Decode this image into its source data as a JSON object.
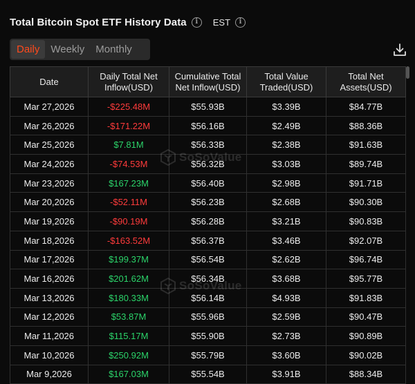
{
  "header": {
    "title": "Total Bitcoin Spot ETF History Data",
    "timezone": "EST"
  },
  "tabs": [
    {
      "label": "Daily",
      "active": true
    },
    {
      "label": "Weekly",
      "active": false
    },
    {
      "label": "Monthly",
      "active": false
    }
  ],
  "watermark": "SoSoValue",
  "table": {
    "columns": [
      "Date",
      "Daily Total Net Inflow(USD)",
      "Cumulative Total Net Inflow(USD)",
      "Total Value Traded(USD)",
      "Total Net Assets(USD)"
    ],
    "rows": [
      {
        "date": "Mar 27,2026",
        "inflow": "-$225.48M",
        "sign": "neg",
        "cumulative": "$55.93B",
        "traded": "$3.39B",
        "assets": "$84.77B"
      },
      {
        "date": "Mar 26,2026",
        "inflow": "-$171.22M",
        "sign": "neg",
        "cumulative": "$56.16B",
        "traded": "$2.49B",
        "assets": "$88.36B"
      },
      {
        "date": "Mar 25,2026",
        "inflow": "$7.81M",
        "sign": "pos",
        "cumulative": "$56.33B",
        "traded": "$2.38B",
        "assets": "$91.63B"
      },
      {
        "date": "Mar 24,2026",
        "inflow": "-$74.53M",
        "sign": "neg",
        "cumulative": "$56.32B",
        "traded": "$3.03B",
        "assets": "$89.74B"
      },
      {
        "date": "Mar 23,2026",
        "inflow": "$167.23M",
        "sign": "pos",
        "cumulative": "$56.40B",
        "traded": "$2.98B",
        "assets": "$91.71B"
      },
      {
        "date": "Mar 20,2026",
        "inflow": "-$52.11M",
        "sign": "neg",
        "cumulative": "$56.23B",
        "traded": "$2.68B",
        "assets": "$90.30B"
      },
      {
        "date": "Mar 19,2026",
        "inflow": "-$90.19M",
        "sign": "neg",
        "cumulative": "$56.28B",
        "traded": "$3.21B",
        "assets": "$90.83B"
      },
      {
        "date": "Mar 18,2026",
        "inflow": "-$163.52M",
        "sign": "neg",
        "cumulative": "$56.37B",
        "traded": "$3.46B",
        "assets": "$92.07B"
      },
      {
        "date": "Mar 17,2026",
        "inflow": "$199.37M",
        "sign": "pos",
        "cumulative": "$56.54B",
        "traded": "$2.62B",
        "assets": "$96.74B"
      },
      {
        "date": "Mar 16,2026",
        "inflow": "$201.62M",
        "sign": "pos",
        "cumulative": "$56.34B",
        "traded": "$3.68B",
        "assets": "$95.77B"
      },
      {
        "date": "Mar 13,2026",
        "inflow": "$180.33M",
        "sign": "pos",
        "cumulative": "$56.14B",
        "traded": "$4.93B",
        "assets": "$91.83B"
      },
      {
        "date": "Mar 12,2026",
        "inflow": "$53.87M",
        "sign": "pos",
        "cumulative": "$55.96B",
        "traded": "$2.59B",
        "assets": "$90.47B"
      },
      {
        "date": "Mar 11,2026",
        "inflow": "$115.17M",
        "sign": "pos",
        "cumulative": "$55.90B",
        "traded": "$2.73B",
        "assets": "$90.89B"
      },
      {
        "date": "Mar 10,2026",
        "inflow": "$250.92M",
        "sign": "pos",
        "cumulative": "$55.79B",
        "traded": "$3.60B",
        "assets": "$90.02B"
      },
      {
        "date": "Mar 9,2026",
        "inflow": "$167.03M",
        "sign": "pos",
        "cumulative": "$55.54B",
        "traded": "$3.91B",
        "assets": "$88.34B"
      }
    ]
  },
  "colors": {
    "accent": "#ff4a1c",
    "negative": "#ff3b3b",
    "positive": "#2bd46a",
    "background": "#0b0b0b"
  },
  "icons": [
    "info-icon",
    "download-icon",
    "sosovalue-logo-icon"
  ]
}
